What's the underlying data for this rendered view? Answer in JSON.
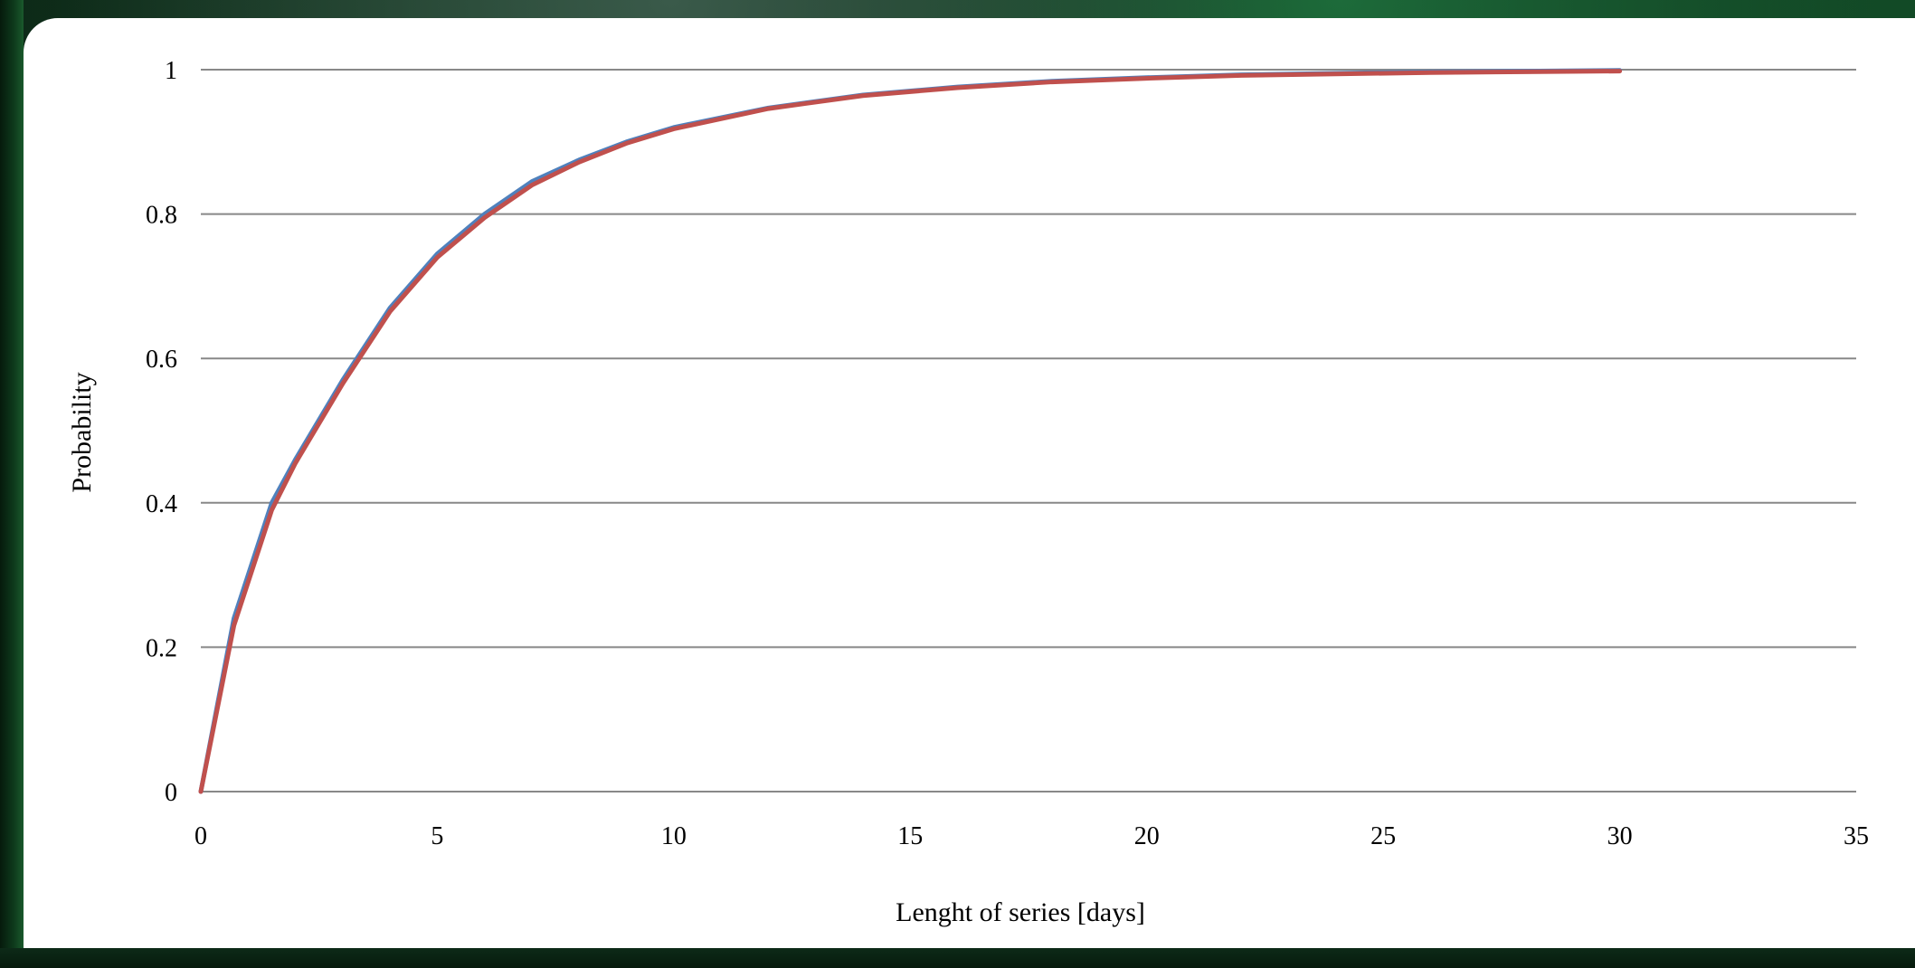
{
  "chart_data": {
    "type": "line",
    "title": "",
    "xlabel": "Lenght of series [days]",
    "ylabel": "Probability",
    "xlim": [
      0,
      35
    ],
    "ylim": [
      0,
      1
    ],
    "x_ticks": [
      "0",
      "5",
      "10",
      "15",
      "20",
      "25",
      "30",
      "35"
    ],
    "y_ticks": [
      "0",
      "0.2",
      "0.4",
      "0.6",
      "0.8",
      "1"
    ],
    "grid": "horizontal",
    "legend": "none",
    "series": [
      {
        "color": "#4f81bd",
        "x": [
          0,
          0.7,
          1.5,
          2,
          3,
          4,
          5,
          6,
          7,
          8,
          9,
          10,
          12,
          14,
          16,
          18,
          20,
          22,
          24,
          26,
          28,
          30
        ],
        "y": [
          0,
          0.24,
          0.4,
          0.46,
          0.57,
          0.67,
          0.745,
          0.8,
          0.845,
          0.875,
          0.9,
          0.92,
          0.947,
          0.965,
          0.976,
          0.984,
          0.989,
          0.993,
          0.995,
          0.997,
          0.998,
          0.999
        ]
      },
      {
        "color": "#c0504d",
        "x": [
          0,
          0.7,
          1.5,
          2,
          3,
          4,
          5,
          6,
          7,
          8,
          9,
          10,
          12,
          14,
          16,
          18,
          20,
          22,
          24,
          26,
          28,
          30
        ],
        "y": [
          0,
          0.23,
          0.39,
          0.455,
          0.565,
          0.665,
          0.74,
          0.795,
          0.84,
          0.872,
          0.898,
          0.918,
          0.946,
          0.964,
          0.975,
          0.983,
          0.988,
          0.992,
          0.994,
          0.996,
          0.997,
          0.998
        ]
      }
    ]
  }
}
